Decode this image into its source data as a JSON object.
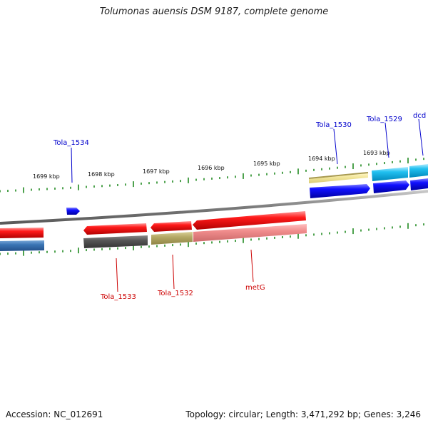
{
  "title": "Tolumonas auensis DSM 9187, complete genome",
  "footer": {
    "accession": "Accession: NC_012691",
    "stats": "Topology: circular; Length: 3,471,292 bp; Genes: 3,246"
  },
  "ruler_labels": [
    "1699 kbp",
    "1698 kbp",
    "1697 kbp",
    "1696 kbp",
    "1695 kbp",
    "1694 kbp",
    "1693 kbp"
  ],
  "gene_labels": {
    "tola_1534": "Tola_1534",
    "tola_1530": "Tola_1530",
    "tola_1529": "Tola_1529",
    "dcd": "dcd",
    "tola_1533": "Tola_1533",
    "tola_1532": "Tola_1532",
    "metg": "metG"
  },
  "colors": {
    "forward_label": "#0000cc",
    "reverse_label": "#cc0000",
    "tick": "#228b22",
    "backbone": "#808080"
  }
}
